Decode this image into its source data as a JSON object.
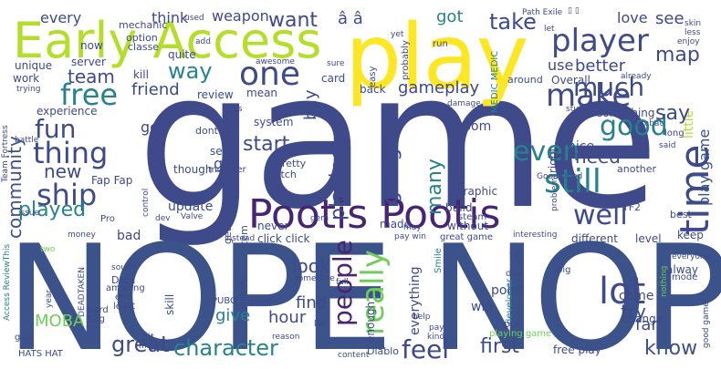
{
  "palette": {
    "dark_purple": "#482475",
    "indigo": "#3e4a89",
    "navy": "#3b528b",
    "blue": "#31688e",
    "teal": "#26828e",
    "sea": "#1f9e89",
    "green": "#35b779",
    "lime": "#6ece58",
    "yellow_green": "#b5de2b",
    "yellow": "#fde725"
  },
  "words": {
    "game": "game",
    "nope_nope": "NOPE NOPE",
    "play": "play",
    "early_access": "Early Access",
    "pootis_pootis": "Pootis Pootis",
    "one": "one",
    "player": "player",
    "make": "make",
    "time": "time",
    "good": "good",
    "even": "even",
    "still": "still",
    "well": "well",
    "lot": "lot",
    "people": "people",
    "really": "really",
    "feel": "feel",
    "character": "character",
    "first": "first",
    "know": "know",
    "fun": "fun",
    "thing": "thing",
    "ship": "ship",
    "free": "free",
    "way": "way",
    "much": "much",
    "want": "want",
    "take": "take",
    "map": "map",
    "say": "say",
    "team": "team",
    "friend": "friend",
    "better": "better",
    "use": "use",
    "see": "see",
    "love": "love",
    "got": "got",
    "weapon": "weapon",
    "think": "think",
    "every": "every",
    "a_hat": "â â",
    "new": "new",
    "played": "played",
    "community": "community",
    "update": "update",
    "playing": "playing",
    "going": "going",
    "many": "many",
    "start": "start",
    "need": "need",
    "play_game": "play game",
    "look": "look",
    "find": "find",
    "give": "give",
    "hour": "hour",
    "great": "great",
    "gameplay": "gameplay",
    "buy": "buy",
    "try": "try",
    "far": "far",
    "god": "god",
    "go": "go",
    "moba": "MOBA",
    "bad": "bad",
    "fap_fap": "Fap Fap",
    "server": "server",
    "unique": "unique",
    "work": "work",
    "experience": "experience",
    "kill": "kill",
    "review": "review",
    "quite": "quite",
    "card": "card",
    "mean": "mean",
    "system": "system",
    "back": "back",
    "room": "room",
    "something": "something",
    "little": "little",
    "nice": "nice",
    "come": "come",
    "keep": "keep",
    "level": "level",
    "different": "different",
    "always": "alway",
    "change": "change",
    "graphic": "graphic",
    "build": "build",
    "made": "made",
    "without": "without",
    "point": "point",
    "win": "win",
    "everything": "everything",
    "never": "never",
    "getting": "getting",
    "item": "item",
    "click_click": "click click",
    "though": "though",
    "seem": "seem",
    "pretty": "pretty",
    "match": "match",
    "dont": "dont",
    "now": "now",
    "classe": "classe",
    "option": "option",
    "mechanic": "mechanic",
    "used": "used",
    "path_exile": "Path Exile",
    "skin": "skin",
    "less": "less",
    "enjoy": "enjoy",
    "let": "let",
    "run": "run",
    "yet": "yet",
    "probably": "probably",
    "overall": "Overall",
    "sure": "sure",
    "easy": "easy",
    "awesome": "awesome",
    "trying": "trying",
    "around": "around",
    "already": "already",
    "medic_medic": "MEDIC MEDIC",
    "damage": "damage",
    "tank": "tank",
    "stuff": "stuff",
    "combat": "combat",
    "right": "right",
    "battle": "battle",
    "team_fortress": "Team Fortress",
    "control": "control",
    "monster": "monster",
    "steam": "steam",
    "good_good": "Good Good",
    "long": "long",
    "said": "said",
    "another": "another",
    "tf2": "TF2",
    "best": "best",
    "issue": "issue",
    "pro": "Pro",
    "dev": "dev",
    "valve": "Valve",
    "instead": "instead",
    "money": "money",
    "gem": "gem",
    "may": "may",
    "pay_win": "pay win",
    "great_game": "great game",
    "interesting": "interesting",
    "smile": "Smile",
    "problem": "problem",
    "sound": "sound",
    "dota": "Dota",
    "skill": "skill",
    "amazing": "amazing",
    "deadtaken": "DEADTAKEN",
    "two": "two",
    "year": "year",
    "looking": "looking",
    "access_reviewthis": "Access ReviewThis",
    "sometime": "sometime",
    "full": "full",
    "enough": "enough",
    "developer": "developer",
    "ye": "ye",
    "day": "day",
    "big": "big",
    "nothing": "nothing",
    "everyone": "everyone",
    "mode": "mode",
    "pubg": "PUBG",
    "space": "space",
    "end": "end",
    "least": "least",
    "hard": "hard",
    "bug": "bug",
    "gun": "gun",
    "hats_hat": "HATS HAT",
    "might": "might",
    "bit": "bit",
    "life": "life",
    "reason": "reason",
    "diablo": "Diablo",
    "content": "content",
    "help": "help",
    "pay": "pay",
    "kind": "kind",
    "put": "put",
    "playing_game": "playing game",
    "free_play": "free play",
    "good_game": "good game",
    "add": "add",
    "learn": "learn",
    "gets": "gets",
    "box": "▯ ▯"
  }
}
